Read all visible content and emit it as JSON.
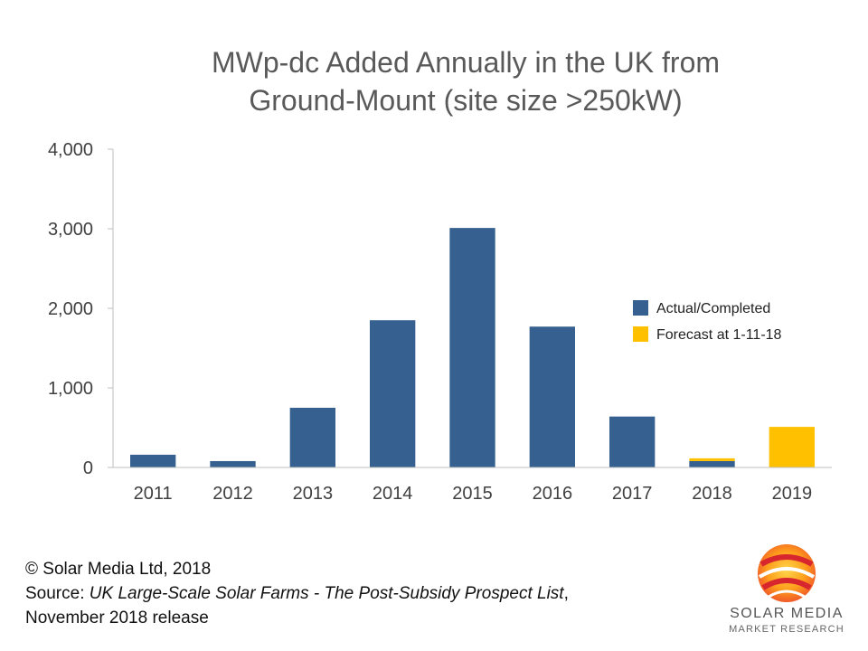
{
  "chart_data": {
    "type": "bar",
    "title": [
      "MWp-dc Added Annually in the UK from",
      "Ground-Mount (site size >250kW)"
    ],
    "xlabel": "",
    "ylabel": "",
    "categories": [
      "2011",
      "2012",
      "2013",
      "2014",
      "2015",
      "2016",
      "2017",
      "2018",
      "2019"
    ],
    "stacked": true,
    "series": [
      {
        "name": "Actual/Completed",
        "color": "#35608f",
        "values": [
          160,
          80,
          750,
          1850,
          3010,
          1770,
          640,
          80,
          0
        ]
      },
      {
        "name": "Forecast at 1-11-18",
        "color": "#ffc000",
        "values": [
          0,
          0,
          0,
          0,
          0,
          0,
          0,
          35,
          510
        ]
      }
    ],
    "ylim": [
      0,
      4000
    ],
    "yticks": [
      "0",
      "1,000",
      "2,000",
      "3,000",
      "4,000"
    ],
    "ytick_values": [
      0,
      1000,
      2000,
      3000,
      4000
    ],
    "grid": false,
    "legend_position": "right"
  },
  "footer": {
    "copyright": "© Solar Media Ltd, 2018",
    "source_prefix": "Source: ",
    "source_title": "UK Large-Scale Solar Farms - The Post-Subsidy Prospect List",
    "source_suffix": ",",
    "release": "November 2018 release"
  },
  "logo": {
    "brand": "SOLAR MEDIA",
    "tagline": "MARKET RESEARCH"
  }
}
